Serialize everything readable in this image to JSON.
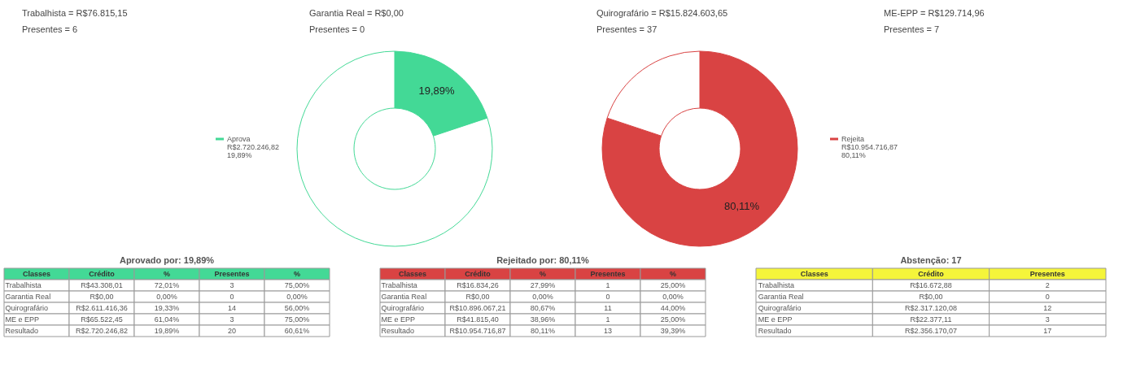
{
  "chart_data": [
    {
      "type": "other",
      "annotations": [
        "Trabalhista = R$76.815,15",
        "Presentes = 6",
        "Garantia Real = R$0,00",
        "Presentes = 0",
        "Quirografário = R$15.824.603,65",
        "Presentes = 37",
        "ME-EPP = R$129.714,96",
        "Presentes = 7"
      ]
    },
    {
      "type": "donut",
      "categories": [
        "Aprova",
        null
      ],
      "values": [
        19.89,
        80.11
      ],
      "colors": [
        "#43d996",
        "#ffffff"
      ],
      "value_labels": [
        "19,89%",
        null
      ],
      "annotations": [
        "R$2.720.246,82",
        "19,89%"
      ],
      "legend": "left"
    },
    {
      "type": "donut",
      "categories": [
        "Rejeita",
        null
      ],
      "values": [
        80.11,
        19.89
      ],
      "colors": [
        "#d94343",
        "#ffffff"
      ],
      "value_labels": [
        "80,11%",
        null
      ],
      "annotations": [
        "R$10.954.716,87",
        "80,11%"
      ],
      "legend": "right"
    },
    {
      "type": "other",
      "title": "Aprovado por: 19,89%",
      "color": "#43d996",
      "categories": [
        "Classes",
        "Crédito",
        "%",
        "Presentes",
        "%"
      ],
      "annotations": [
        "Trabalhista",
        "R$43.308,01",
        "72,01%",
        "3",
        "75,00%",
        "Garantia Real",
        "R$0,00",
        "0,00%",
        "0",
        "0,00%",
        "Quirografário",
        "R$2.611.416,36",
        "19,33%",
        "14",
        "56,00%",
        "ME e EPP",
        "R$65.522,45",
        "61,04%",
        "3",
        "75,00%",
        "Resultado",
        "R$2.720.246,82",
        "19,89%",
        "20",
        "60,61%"
      ]
    },
    {
      "type": "other",
      "title": "Rejeitado por: 80,11%",
      "color": "#d94343",
      "categories": [
        "Classes",
        "Crédito",
        "%",
        "Presentes",
        "%"
      ],
      "annotations": [
        "Trabalhista",
        "R$16.834,26",
        "27,99%",
        "1",
        "25,00%",
        "Garantia Real",
        "R$0,00",
        "0,00%",
        "0",
        "0,00%",
        "Quirografário",
        "R$10.896.067,21",
        "80,67%",
        "11",
        "44,00%",
        "ME e EPP",
        "R$41.815,40",
        "38,96%",
        "1",
        "25,00%",
        "Resultado",
        "R$10.954.716,87",
        "80,11%",
        "13",
        "39,39%"
      ]
    },
    {
      "type": "other",
      "title": "Abstenção: 17",
      "color": "#f5f53a",
      "categories": [
        "Classes",
        "Crédito",
        "Presentes"
      ],
      "annotations": [
        "Trabalhista",
        "R$16.672,88",
        "2",
        "Garantia Real",
        "R$0,00",
        "0",
        "Quirografário",
        "R$2.317.120,08",
        "12",
        "ME e EPP",
        "R$22.377,11",
        "3",
        "Resultado",
        "R$2.356.170,07",
        "17"
      ]
    }
  ]
}
